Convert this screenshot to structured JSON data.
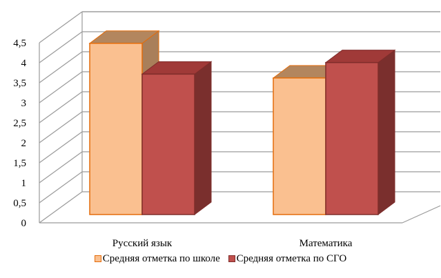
{
  "chart_data": {
    "type": "bar",
    "categories": [
      "Русский язык",
      "Математика"
    ],
    "series": [
      {
        "name": "Средняя отметка по школе",
        "values": [
          4.45,
          3.55
        ],
        "color": "#FAC090",
        "edge": "#E46C0A"
      },
      {
        "name": "Средняя отметка по СГО",
        "values": [
          3.65,
          3.95
        ],
        "color": "#C0504D",
        "edge": "#7F2D2B"
      }
    ],
    "y_ticks": [
      "0",
      "0,5",
      "1",
      "1,5",
      "2",
      "2,5",
      "3",
      "3,5",
      "4",
      "4,5"
    ],
    "ylim": [
      0,
      4.5
    ],
    "grid": true,
    "legend_position": "bottom",
    "style": "3d-clustered-column"
  }
}
